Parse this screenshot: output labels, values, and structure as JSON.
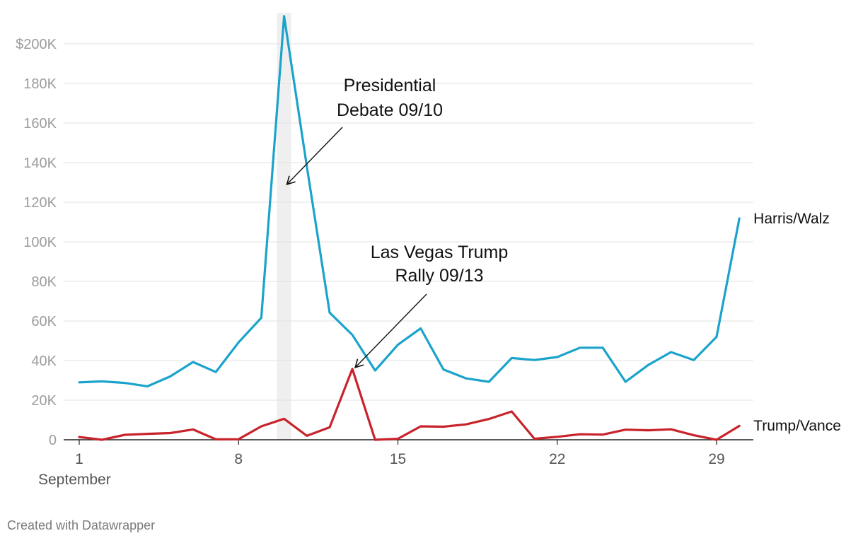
{
  "chart_data": {
    "type": "line",
    "x": [
      1,
      2,
      3,
      4,
      5,
      6,
      7,
      8,
      9,
      10,
      11,
      12,
      13,
      14,
      15,
      16,
      17,
      18,
      19,
      20,
      21,
      22,
      23,
      24,
      25,
      26,
      27,
      28,
      29,
      30
    ],
    "x_month_label": "September",
    "x_ticks": [
      1,
      8,
      15,
      22,
      29
    ],
    "x_tick_labels": [
      "1",
      "8",
      "15",
      "22",
      "29"
    ],
    "y_ticks": [
      0,
      20000,
      40000,
      60000,
      80000,
      100000,
      120000,
      140000,
      160000,
      180000,
      200000
    ],
    "y_tick_labels": [
      "0",
      "20K",
      "40K",
      "60K",
      "80K",
      "100K",
      "120K",
      "140K",
      "160K",
      "180K",
      "$200K"
    ],
    "ylim": [
      0,
      215000
    ],
    "xlim": [
      1,
      30.8
    ],
    "series": [
      {
        "name": "Harris/Walz",
        "color": "#1ba3cb",
        "values": [
          29000,
          29500,
          28700,
          27000,
          32000,
          39300,
          34200,
          49200,
          61600,
          214000,
          138000,
          64200,
          53000,
          35000,
          48000,
          56300,
          35500,
          31000,
          29300,
          41300,
          40300,
          41800,
          46500,
          46500,
          29300,
          37800,
          44300,
          40300,
          52000,
          111800
        ]
      },
      {
        "name": "Trump/Vance",
        "color": "#c8232b",
        "values": [
          1400,
          0,
          2500,
          3000,
          3400,
          5200,
          200,
          300,
          6800,
          10600,
          2000,
          6300,
          35800,
          0,
          500,
          6800,
          6600,
          7800,
          10500,
          14300,
          500,
          1500,
          2800,
          2600,
          5100,
          4800,
          5300,
          2300,
          0,
          7000
        ]
      }
    ],
    "highlight_day": 10,
    "annotations": [
      {
        "lines": [
          "Presidential",
          "Debate 09/10"
        ],
        "target_x": 10,
        "target_y": 129000
      },
      {
        "lines": [
          "Las Vegas Trump",
          "Rally 09/13"
        ],
        "target_x": 13,
        "target_y": 36500
      }
    ],
    "grid": true
  },
  "credit": "Created with Datawrapper"
}
